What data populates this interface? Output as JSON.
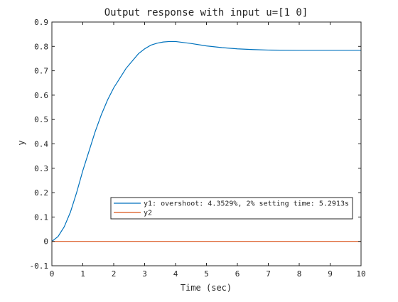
{
  "chart_data": {
    "type": "line",
    "title": "Output response with input u=[1 0]",
    "xlabel": "Time (sec)",
    "ylabel": "y",
    "xlim": [
      0,
      10
    ],
    "ylim": [
      -0.1,
      0.9
    ],
    "xticks": [
      0,
      1,
      2,
      3,
      4,
      5,
      6,
      7,
      8,
      9,
      10
    ],
    "yticks": [
      -0.1,
      0,
      0.1,
      0.2,
      0.3,
      0.4,
      0.5,
      0.6,
      0.7,
      0.8,
      0.9
    ],
    "grid": false,
    "legend_position": "lower-right",
    "series": [
      {
        "name": "y1: overshoot: 4.3529%, 2% setting time: 5.2913s",
        "color": "#0072BD",
        "x": [
          0,
          0.2,
          0.4,
          0.6,
          0.8,
          1.0,
          1.2,
          1.4,
          1.6,
          1.8,
          2.0,
          2.2,
          2.4,
          2.6,
          2.8,
          3.0,
          3.2,
          3.4,
          3.6,
          3.8,
          4.0,
          4.5,
          5.0,
          5.5,
          6.0,
          6.5,
          7.0,
          8.0,
          9.0,
          10.0
        ],
        "y": [
          0,
          0.02,
          0.06,
          0.12,
          0.2,
          0.29,
          0.37,
          0.45,
          0.52,
          0.58,
          0.63,
          0.67,
          0.71,
          0.74,
          0.77,
          0.79,
          0.805,
          0.813,
          0.818,
          0.82,
          0.82,
          0.812,
          0.802,
          0.795,
          0.79,
          0.787,
          0.785,
          0.784,
          0.784,
          0.784
        ]
      },
      {
        "name": "y2",
        "color": "#D95319",
        "x": [
          0,
          10
        ],
        "y": [
          0,
          0
        ]
      }
    ]
  }
}
